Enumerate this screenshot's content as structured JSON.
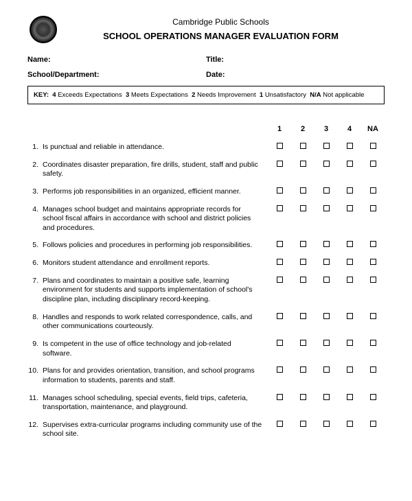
{
  "header": {
    "organization": "Cambridge Public Schools",
    "form_title": "SCHOOL OPERATIONS MANAGER EVALUATION FORM"
  },
  "fields": {
    "name_label": "Name:",
    "title_label": "Title:",
    "school_dept_label": "School/Department:",
    "date_label": "Date:"
  },
  "key": {
    "label": "KEY:",
    "k4": "4",
    "t4": "Exceeds Expectations",
    "k3": "3",
    "t3": "Meets Expectations",
    "k2": "2",
    "t2": "Needs Improvement",
    "k1": "1",
    "t1": "Unsatisfactory",
    "kna": "N/A",
    "tna": "Not applicable"
  },
  "columns": [
    "1",
    "2",
    "3",
    "4",
    "NA"
  ],
  "items": [
    {
      "n": "1.",
      "t": "Is punctual and reliable in attendance."
    },
    {
      "n": "2.",
      "t": "Coordinates disaster preparation, fire drills, student, staff and public safety."
    },
    {
      "n": "3.",
      "t": "Performs job responsibilities in an organized, efficient manner."
    },
    {
      "n": "4.",
      "t": "Manages school budget and maintains appropriate records for school fiscal affairs in accordance with school and district policies and procedures."
    },
    {
      "n": "5.",
      "t": "Follows policies and procedures in performing job responsibilities."
    },
    {
      "n": "6.",
      "t": "Monitors student attendance and enrollment reports."
    },
    {
      "n": "7.",
      "t": "Plans and coordinates to maintain a positive safe, learning environment for students and supports implementation of school's discipline plan, including disciplinary record-keeping."
    },
    {
      "n": "8.",
      "t": "Handles and responds to work related correspondence, calls, and other communications courteously."
    },
    {
      "n": "9.",
      "t": "Is competent in the use of office technology and job-related software."
    },
    {
      "n": "10.",
      "t": "Plans for and provides orientation, transition, and school programs information to students, parents and staff."
    },
    {
      "n": "11.",
      "t": "Manages school scheduling, special events, field trips, cafeteria, transportation, maintenance, and playground."
    },
    {
      "n": "12.",
      "t": "Supervises extra-curricular programs including community use of the school site."
    }
  ]
}
